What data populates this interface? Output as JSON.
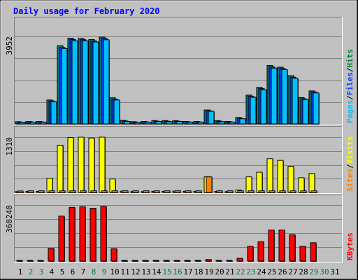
{
  "chart_data": [
    {
      "type": "bar",
      "title": "Daily usage for February 2020",
      "max_label": "3952",
      "legend": [
        {
          "text": "Pages",
          "color": "#00c0ff"
        },
        {
          "text": "/",
          "color": "#000000"
        },
        {
          "text": "Files",
          "color": "#0040ff"
        },
        {
          "text": "/",
          "color": "#000000"
        },
        {
          "text": "Hits",
          "color": "#008040"
        }
      ],
      "categories": [
        "1",
        "2",
        "3",
        "4",
        "5",
        "6",
        "7",
        "8",
        "9",
        "10",
        "11",
        "12",
        "13",
        "14",
        "15",
        "16",
        "17",
        "18",
        "19",
        "20",
        "21",
        "22",
        "23",
        "24",
        "25",
        "26",
        "27",
        "28",
        "29",
        "30",
        "31"
      ],
      "series": [
        {
          "name": "Hits",
          "color": "#008080",
          "values": [
            100,
            110,
            110,
            1080,
            3530,
            3870,
            3860,
            3810,
            3920,
            1180,
            160,
            100,
            110,
            150,
            150,
            150,
            110,
            110,
            630,
            150,
            110,
            290,
            1300,
            1650,
            2640,
            2560,
            2180,
            1190,
            1490,
            0,
            0
          ]
        },
        {
          "name": "Files",
          "color": "#0040ff",
          "values": [
            80,
            90,
            90,
            1040,
            3450,
            3810,
            3800,
            3750,
            3860,
            1120,
            130,
            80,
            90,
            120,
            120,
            120,
            90,
            90,
            590,
            120,
            90,
            250,
            1250,
            1590,
            2570,
            2500,
            2110,
            1140,
            1440,
            0,
            0
          ]
        },
        {
          "name": "Pages",
          "color": "#00c0ff",
          "values": [
            70,
            80,
            80,
            1000,
            3400,
            3750,
            3750,
            3700,
            3800,
            1080,
            110,
            70,
            80,
            110,
            100,
            110,
            80,
            80,
            570,
            100,
            80,
            230,
            1200,
            1540,
            2520,
            2450,
            2060,
            1100,
            1400,
            0,
            0
          ]
        }
      ]
    },
    {
      "type": "bar",
      "max_label": "1310",
      "legend": [
        {
          "text": "Sites",
          "color": "#ff8000"
        },
        {
          "text": "/",
          "color": "#000000"
        },
        {
          "text": "Visits",
          "color": "#ffff00"
        }
      ],
      "categories": [
        "1",
        "2",
        "3",
        "4",
        "5",
        "6",
        "7",
        "8",
        "9",
        "10",
        "11",
        "12",
        "13",
        "14",
        "15",
        "16",
        "17",
        "18",
        "19",
        "20",
        "21",
        "22",
        "23",
        "24",
        "25",
        "26",
        "27",
        "28",
        "29",
        "30",
        "31"
      ],
      "series": [
        {
          "name": "Visits",
          "color": "#ffff00",
          "values": [
            20,
            25,
            25,
            340,
            1120,
            1300,
            1310,
            1290,
            1310,
            320,
            30,
            20,
            20,
            25,
            25,
            30,
            25,
            25,
            370,
            25,
            20,
            60,
            370,
            480,
            800,
            760,
            620,
            350,
            450,
            0,
            0
          ]
        },
        {
          "name": "Sites",
          "color": "#ff8000",
          "values": [
            35,
            40,
            40,
            40,
            40,
            40,
            40,
            40,
            40,
            40,
            40,
            40,
            40,
            40,
            40,
            40,
            40,
            40,
            370,
            40,
            40,
            40,
            40,
            40,
            40,
            40,
            40,
            40,
            40,
            0,
            0
          ]
        }
      ]
    },
    {
      "type": "bar",
      "max_label": "360240",
      "legend": [
        {
          "text": "KBytes",
          "color": "#ff0000"
        }
      ],
      "categories": [
        "1",
        "2",
        "3",
        "4",
        "5",
        "6",
        "7",
        "8",
        "9",
        "10",
        "11",
        "12",
        "13",
        "14",
        "15",
        "16",
        "17",
        "18",
        "19",
        "20",
        "21",
        "22",
        "23",
        "24",
        "25",
        "26",
        "27",
        "28",
        "29",
        "30",
        "31"
      ],
      "series": [
        {
          "name": "KBytes",
          "color": "#ff0000",
          "values": [
            2000,
            2000,
            2000,
            82000,
            290000,
            345000,
            350000,
            340000,
            352000,
            80000,
            2000,
            2000,
            2000,
            2000,
            2000,
            2000,
            2000,
            2000,
            10000,
            2000,
            2000,
            18000,
            95000,
            125000,
            200000,
            200000,
            170000,
            95000,
            118000,
            0,
            0
          ]
        }
      ]
    }
  ],
  "day_colors": [
    "#000000",
    "#008040",
    "#008040",
    "#000000",
    "#000000",
    "#000000",
    "#000000",
    "#008040",
    "#008040",
    "#000000",
    "#000000",
    "#000000",
    "#000000",
    "#000000",
    "#008040",
    "#008040",
    "#000000",
    "#000000",
    "#000000",
    "#000000",
    "#000000",
    "#008040",
    "#008040",
    "#000000",
    "#000000",
    "#000000",
    "#000000",
    "#000000",
    "#008040",
    "#008040",
    "#000000"
  ]
}
